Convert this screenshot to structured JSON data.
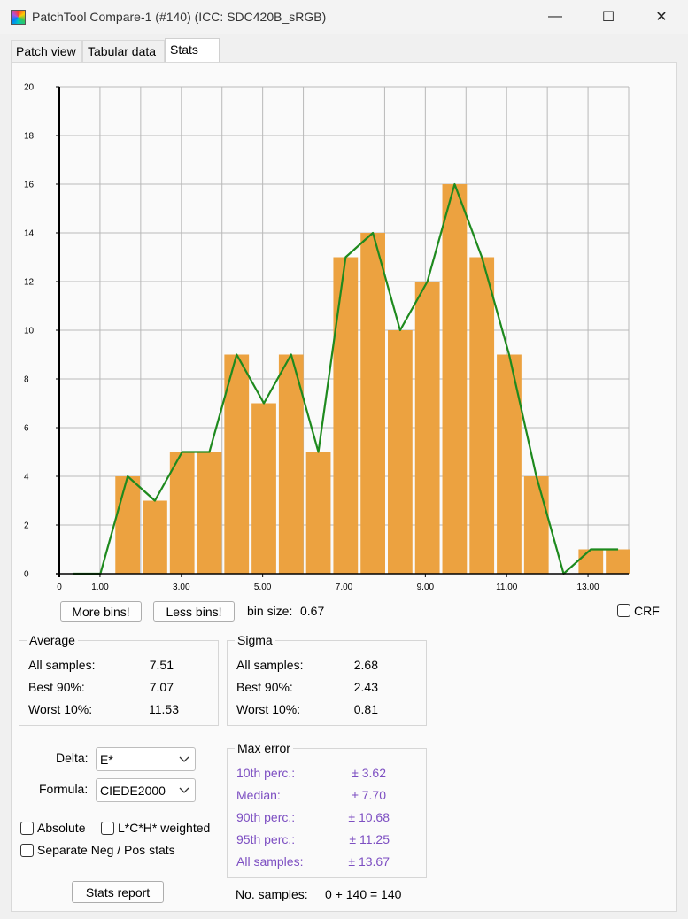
{
  "window": {
    "title": "PatchTool Compare-1 (#140) (ICC: SDC420B_sRGB)",
    "minimize_symbol": "—",
    "maximize_symbol": "☐",
    "close_symbol": "✕"
  },
  "tabs": [
    {
      "label": "Patch view",
      "active": false
    },
    {
      "label": "Tabular data",
      "active": false
    },
    {
      "label": "Stats",
      "active": true
    }
  ],
  "chart_data": {
    "type": "bar",
    "title": "",
    "xlabel": "",
    "ylabel": "",
    "xlim": [
      0,
      14.0
    ],
    "ylim": [
      0,
      20
    ],
    "grid": true,
    "bar_color": "#eca240",
    "line_color": "#1e8a1e",
    "bin_width": 0.67,
    "bin_centers": [
      0.34,
      1.01,
      1.68,
      2.35,
      3.02,
      3.69,
      4.36,
      5.03,
      5.7,
      6.37,
      7.04,
      7.71,
      8.38,
      9.05,
      9.72,
      10.39,
      11.06,
      11.73,
      12.4,
      13.07,
      13.74
    ],
    "values": [
      0,
      0,
      4,
      3,
      5,
      5,
      9,
      7,
      9,
      5,
      13,
      14,
      10,
      12,
      16,
      13,
      9,
      4,
      0,
      1,
      1
    ],
    "y_ticks": [
      0,
      2,
      4,
      6,
      8,
      10,
      12,
      14,
      16,
      18,
      20
    ],
    "x_ticks": [
      {
        "value": 0,
        "label": "0"
      },
      {
        "value": 1,
        "label": "1.00"
      },
      {
        "value": 3,
        "label": "3.00"
      },
      {
        "value": 5,
        "label": "5.00"
      },
      {
        "value": 7,
        "label": "7.00"
      },
      {
        "value": 9,
        "label": "9.00"
      },
      {
        "value": 11,
        "label": "11.00"
      },
      {
        "value": 13,
        "label": "13.00"
      }
    ],
    "x_grid": [
      1,
      2,
      3,
      4,
      5,
      6,
      7,
      8,
      9,
      10,
      11,
      12,
      13,
      14
    ]
  },
  "controls": {
    "more_bins": "More bins!",
    "less_bins": "Less bins!",
    "bin_size_label": "bin size:",
    "bin_size_value": "0.67",
    "crf_label": "CRF"
  },
  "average": {
    "title": "Average",
    "rows": [
      {
        "label": "All samples:",
        "value": "7.51"
      },
      {
        "label": "Best 90%:",
        "value": "7.07"
      },
      {
        "label": "Worst 10%:",
        "value": "11.53"
      }
    ]
  },
  "sigma": {
    "title": "Sigma",
    "rows": [
      {
        "label": "All samples:",
        "value": "2.68"
      },
      {
        "label": "Best 90%:",
        "value": "2.43"
      },
      {
        "label": "Worst 10%:",
        "value": "0.81"
      }
    ]
  },
  "settings": {
    "delta_label": "Delta:",
    "delta_value": "E*",
    "formula_label": "Formula:",
    "formula_value": "CIEDE2000",
    "absolute_label": "Absolute",
    "lch_label": "L*C*H* weighted",
    "separate_label": "Separate Neg / Pos stats",
    "stats_report": "Stats report"
  },
  "max_error": {
    "title": "Max error",
    "rows": [
      {
        "label": "10th perc.:",
        "value": "± 3.62"
      },
      {
        "label": "Median:",
        "value": "± 7.70"
      },
      {
        "label": "90th perc.:",
        "value": "± 10.68"
      },
      {
        "label": "95th perc.:",
        "value": "± 11.25"
      },
      {
        "label": "All samples:",
        "value": "± 13.67"
      }
    ]
  },
  "samples": {
    "label": "No. samples:",
    "value": "0 + 140 = 140"
  }
}
